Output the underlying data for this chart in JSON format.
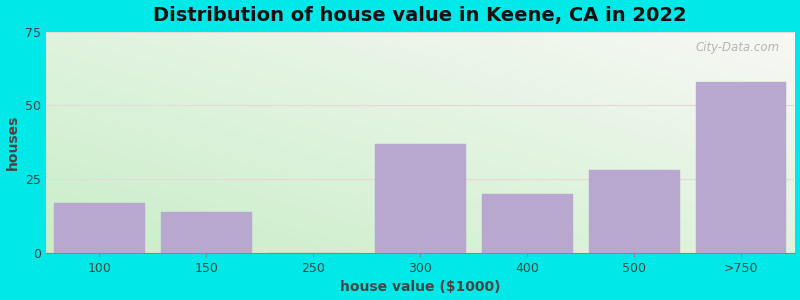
{
  "title": "Distribution of house value in Keene, CA in 2022",
  "xlabel": "house value ($1000)",
  "ylabel": "houses",
  "categories": [
    "100",
    "150",
    "250",
    "300",
    "400",
    "500",
    ">750"
  ],
  "values": [
    17,
    14,
    0,
    37,
    20,
    28,
    58
  ],
  "bar_color": "#b8a8d0",
  "bar_edgecolor": "#b8a8d0",
  "ylim": [
    0,
    75
  ],
  "yticks": [
    0,
    25,
    50,
    75
  ],
  "background_outer": "#00e8e8",
  "background_corner_green": "#c8eec8",
  "background_corner_white": "#f8f8f5",
  "title_fontsize": 14,
  "axis_label_fontsize": 10,
  "tick_fontsize": 9,
  "watermark_text": "City-Data.com"
}
